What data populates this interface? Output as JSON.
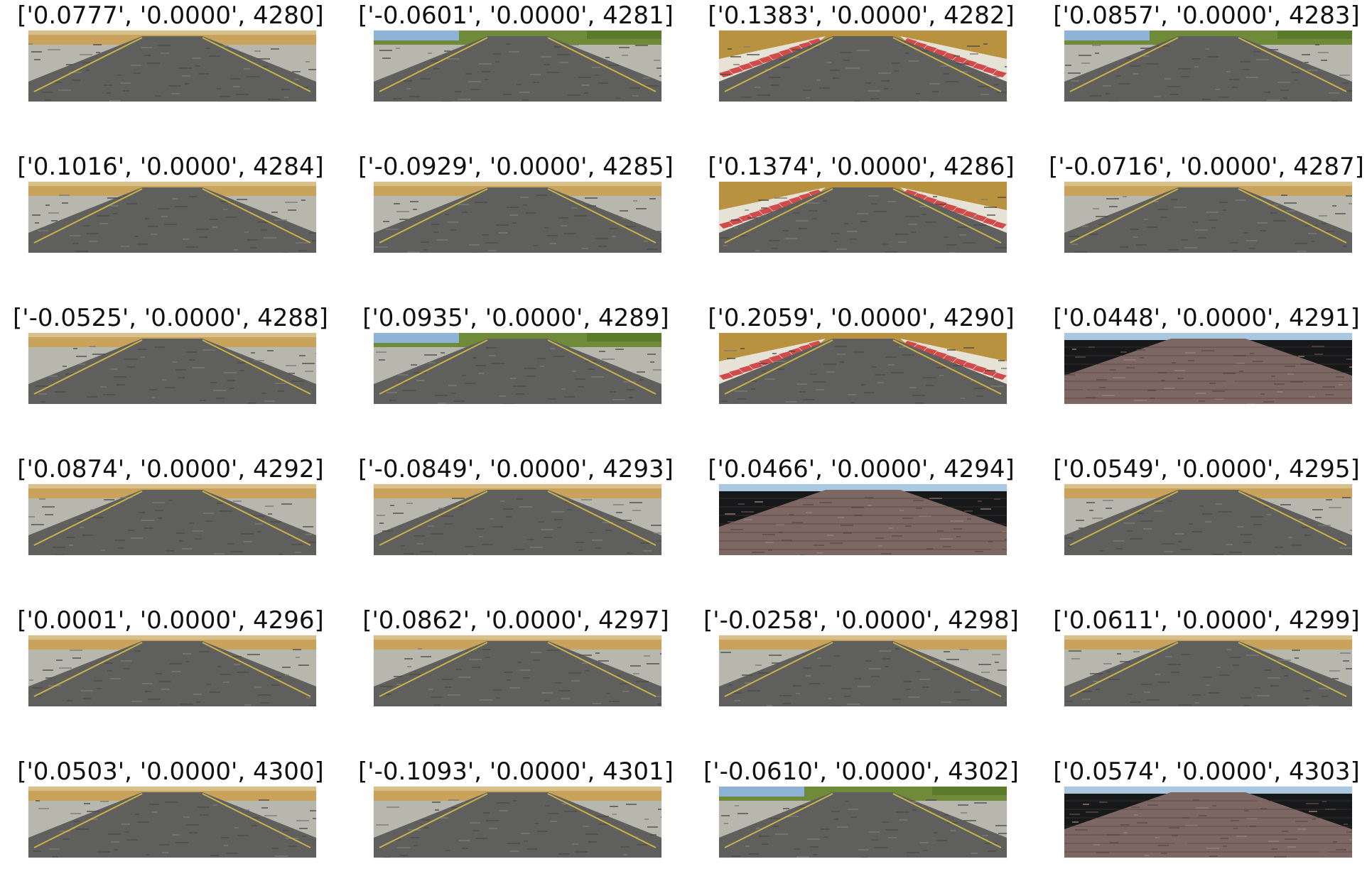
{
  "panels": [
    {
      "caption": "['0.0777', '0.0000', 4280]",
      "scene": "asphalt-bridge"
    },
    {
      "caption": "['-0.0601', '0.0000', 4281]",
      "scene": "asphalt-lake"
    },
    {
      "caption": "['0.1383', '0.0000', 4282]",
      "scene": "asphalt-red-white-curbs"
    },
    {
      "caption": "['0.0857', '0.0000', 4283]",
      "scene": "asphalt-lake"
    },
    {
      "caption": "['0.1016', '0.0000', 4284]",
      "scene": "asphalt-field"
    },
    {
      "caption": "['-0.0929', '0.0000', 4285]",
      "scene": "asphalt-field"
    },
    {
      "caption": "['0.1374', '0.0000', 4286]",
      "scene": "asphalt-red-white-curbs"
    },
    {
      "caption": "['-0.0716', '0.0000', 4287]",
      "scene": "asphalt-field"
    },
    {
      "caption": "['-0.0525', '0.0000', 4288]",
      "scene": "asphalt-field"
    },
    {
      "caption": "['0.0935', '0.0000', 4289]",
      "scene": "asphalt-lake"
    },
    {
      "caption": "['0.2059', '0.0000', 4290]",
      "scene": "asphalt-red-white-curbs"
    },
    {
      "caption": "['0.0448', '0.0000', 4291]",
      "scene": "brick-bridge"
    },
    {
      "caption": "['0.0874', '0.0000', 4292]",
      "scene": "asphalt-field"
    },
    {
      "caption": "['-0.0849', '0.0000', 4293]",
      "scene": "asphalt-field"
    },
    {
      "caption": "['0.0466', '0.0000', 4294]",
      "scene": "brick-bridge"
    },
    {
      "caption": "['0.0549', '0.0000', 4295]",
      "scene": "asphalt-field"
    },
    {
      "caption": "['0.0001', '0.0000', 4296]",
      "scene": "asphalt-field"
    },
    {
      "caption": "['0.0862', '0.0000', 4297]",
      "scene": "asphalt-field"
    },
    {
      "caption": "['-0.0258', '0.0000', 4298]",
      "scene": "asphalt-field"
    },
    {
      "caption": "['0.0611', '0.0000', 4299]",
      "scene": "asphalt-field"
    },
    {
      "caption": "['0.0503', '0.0000', 4300]",
      "scene": "asphalt-field"
    },
    {
      "caption": "['-0.1093', '0.0000', 4301]",
      "scene": "asphalt-field"
    },
    {
      "caption": "['-0.0610', '0.0000', 4302]",
      "scene": "asphalt-lake"
    },
    {
      "caption": "['0.0574', '0.0000', 4303]",
      "scene": "brick-bridge"
    }
  ]
}
